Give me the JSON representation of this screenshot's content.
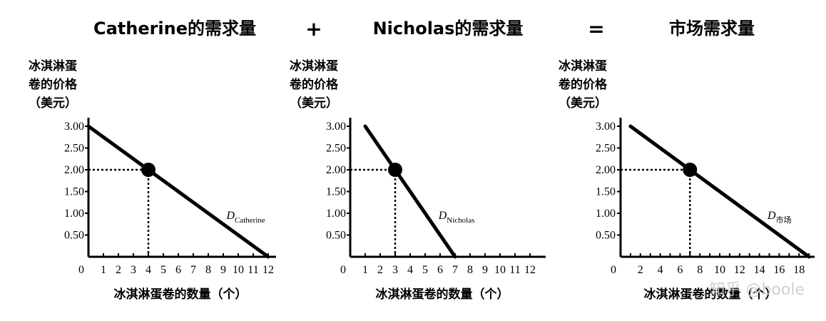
{
  "colors": {
    "ink": "#000000",
    "watermark": "#c8c8c8"
  },
  "header": {
    "operators": [
      "+",
      "="
    ]
  },
  "watermark": "知乎 @boole",
  "chart_data": [
    {
      "type": "line",
      "title": "Catherine的需求量",
      "ylabel": [
        "冰淇淋蛋",
        "卷的价格",
        "（美元）"
      ],
      "xlabel": "冰淇淋蛋卷的数量（个）",
      "y_ticks": [
        "3.00",
        "2.50",
        "2.00",
        "1.50",
        "1.00",
        "0.50"
      ],
      "y_tick_values": [
        3.0,
        2.5,
        2.0,
        1.5,
        1.0,
        0.5
      ],
      "x_ticks": [
        "0",
        "1",
        "2",
        "3",
        "4",
        "5",
        "6",
        "7",
        "8",
        "9",
        "10",
        "11",
        "12"
      ],
      "x_tick_values": [
        0,
        1,
        2,
        3,
        4,
        5,
        6,
        7,
        8,
        9,
        10,
        11,
        12
      ],
      "xlim": [
        0,
        12.5
      ],
      "ylim": [
        0,
        3.5
      ],
      "series": [
        {
          "x": [
            0,
            12
          ],
          "y": [
            3.0,
            0.0
          ]
        }
      ],
      "highlight_point": {
        "x": 4,
        "y": 2.0
      },
      "curve_label": {
        "main": "D",
        "sub": "Catherine"
      }
    },
    {
      "type": "line",
      "title": "Nicholas的需求量",
      "ylabel": [
        "冰淇淋蛋",
        "卷的价格",
        "（美元）"
      ],
      "xlabel": "冰淇淋蛋卷的数量（个）",
      "y_ticks": [
        "3.00",
        "2.50",
        "2.00",
        "1.50",
        "1.00",
        "0.50"
      ],
      "y_tick_values": [
        3.0,
        2.5,
        2.0,
        1.5,
        1.0,
        0.5
      ],
      "x_ticks": [
        "0",
        "1",
        "2",
        "3",
        "4",
        "5",
        "6",
        "7",
        "8",
        "9",
        "10",
        "11",
        "12"
      ],
      "x_tick_values": [
        0,
        1,
        2,
        3,
        4,
        5,
        6,
        7,
        8,
        9,
        10,
        11,
        12
      ],
      "xlim": [
        0,
        12.5
      ],
      "ylim": [
        0,
        3.5
      ],
      "series": [
        {
          "x": [
            1,
            7
          ],
          "y": [
            3.0,
            0.0
          ]
        }
      ],
      "highlight_point": {
        "x": 3,
        "y": 2.0
      },
      "curve_label": {
        "main": "D",
        "sub": "Nicholas"
      }
    },
    {
      "type": "line",
      "title": "市场需求量",
      "ylabel": [
        "冰淇淋蛋",
        "卷的价格",
        "（美元）"
      ],
      "xlabel": "冰淇淋蛋卷的数量（个）",
      "y_ticks": [
        "3.00",
        "2.50",
        "2.00",
        "1.50",
        "1.00",
        "0.50"
      ],
      "y_tick_values": [
        3.0,
        2.5,
        2.0,
        1.5,
        1.0,
        0.5
      ],
      "x_ticks": [
        "0",
        "2",
        "4",
        "6",
        "8",
        "10",
        "12",
        "14",
        "16",
        "18"
      ],
      "x_tick_values": [
        0,
        2,
        4,
        6,
        8,
        10,
        12,
        14,
        16,
        18
      ],
      "x_minor_step": 1,
      "xlim": [
        0,
        19
      ],
      "ylim": [
        0,
        3.5
      ],
      "series": [
        {
          "x": [
            1,
            19
          ],
          "y": [
            3.0,
            0.0
          ]
        }
      ],
      "highlight_point": {
        "x": 7,
        "y": 2.0
      },
      "curve_label": {
        "main": "D",
        "sub": "市场"
      }
    }
  ]
}
